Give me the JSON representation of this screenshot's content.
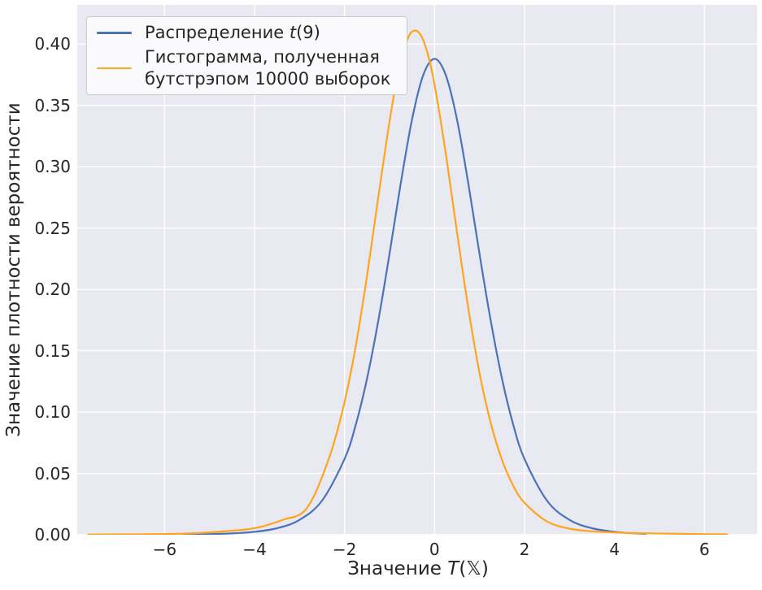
{
  "figure": {
    "background": "#ffffff",
    "plot_background": "#e9e9f1",
    "grid_color": "#ffffff",
    "text_color": "#262626"
  },
  "axes": {
    "xlabel_parts": [
      "Значение ",
      "T",
      "(𝕏)"
    ],
    "ylabel": "Значение плотности вероятности",
    "x_ticks": {
      "values": [
        -6,
        -4,
        -2,
        0,
        2,
        4,
        6
      ],
      "labels": [
        "−6",
        "−4",
        "−2",
        "0",
        "2",
        "4",
        "6"
      ]
    },
    "y_ticks": {
      "values": [
        0.0,
        0.05,
        0.1,
        0.15,
        0.2,
        0.25,
        0.3,
        0.35,
        0.4
      ],
      "labels": [
        "0.00",
        "0.05",
        "0.10",
        "0.15",
        "0.20",
        "0.25",
        "0.30",
        "0.35",
        "0.40"
      ]
    },
    "xlim": [
      -7.94,
      7.17
    ],
    "ylim": [
      0,
      0.432
    ]
  },
  "legend": {
    "entry1_parts": [
      "Распределение ",
      "t",
      "(9)"
    ],
    "entry2_lines": [
      "Гистограмма, полученная",
      "бутстрэпом 10000 выборок"
    ],
    "colors": [
      "#4c72b8",
      "#ffa41f"
    ]
  },
  "chart_data": {
    "type": "line",
    "title": "",
    "xlabel": "Значение T(𝕏)",
    "ylabel": "Значение плотности вероятности",
    "xlim": [
      -7.94,
      7.17
    ],
    "ylim": [
      0,
      0.432
    ],
    "grid": true,
    "legend_position": "upper left",
    "series": [
      {
        "id": "t9-distribution-curve",
        "name": "Распределение t(9)",
        "color": "#4c72b8",
        "points": [
          [
            -5.6,
            0.0002
          ],
          [
            -5.2,
            0.0004
          ],
          [
            -4.8,
            0.0007
          ],
          [
            -4.4,
            0.0013
          ],
          [
            -4,
            0.0024
          ],
          [
            -3.5,
            0.0053
          ],
          [
            -3,
            0.0121
          ],
          [
            -2.5,
            0.0278
          ],
          [
            -2,
            0.0617
          ],
          [
            -1.75,
            0.0897
          ],
          [
            -1.5,
            0.1272
          ],
          [
            -1.25,
            0.1743
          ],
          [
            -1,
            0.2291
          ],
          [
            -0.75,
            0.2866
          ],
          [
            -0.5,
            0.3384
          ],
          [
            -0.25,
            0.3748
          ],
          [
            0,
            0.388
          ],
          [
            0.25,
            0.3748
          ],
          [
            0.5,
            0.3384
          ],
          [
            0.75,
            0.2866
          ],
          [
            1,
            0.2291
          ],
          [
            1.25,
            0.1743
          ],
          [
            1.5,
            0.1272
          ],
          [
            1.75,
            0.0897
          ],
          [
            2,
            0.0617
          ],
          [
            2.5,
            0.0278
          ],
          [
            3,
            0.0121
          ],
          [
            3.5,
            0.0053
          ],
          [
            4,
            0.0024
          ],
          [
            4.4,
            0.0012
          ],
          [
            4.7,
            0.0008
          ]
        ]
      },
      {
        "id": "bootstrap-kde-curve",
        "name": "Гистограмма, полученная бутстрэпом 10000 выборок",
        "color": "#ffa41f",
        "points": [
          [
            -7.7,
            0.0002
          ],
          [
            -7,
            0.0003
          ],
          [
            -6.5,
            0.0004
          ],
          [
            -6,
            0.0006
          ],
          [
            -5.5,
            0.001
          ],
          [
            -5,
            0.0019
          ],
          [
            -4.5,
            0.0033
          ],
          [
            -4.1,
            0.0048
          ],
          [
            -3.8,
            0.007
          ],
          [
            -3.5,
            0.0105
          ],
          [
            -3.3,
            0.013
          ],
          [
            -3.1,
            0.0148
          ],
          [
            -2.9,
            0.019
          ],
          [
            -2.7,
            0.03
          ],
          [
            -2.5,
            0.047
          ],
          [
            -2.25,
            0.073
          ],
          [
            -2,
            0.108
          ],
          [
            -1.75,
            0.154
          ],
          [
            -1.5,
            0.211
          ],
          [
            -1.25,
            0.275
          ],
          [
            -1,
            0.337
          ],
          [
            -0.8,
            0.378
          ],
          [
            -0.6,
            0.404
          ],
          [
            -0.45,
            0.411
          ],
          [
            -0.3,
            0.407
          ],
          [
            -0.15,
            0.392
          ],
          [
            0,
            0.367
          ],
          [
            0.25,
            0.311
          ],
          [
            0.5,
            0.2465
          ],
          [
            0.75,
            0.185
          ],
          [
            1,
            0.132
          ],
          [
            1.25,
            0.091
          ],
          [
            1.5,
            0.061
          ],
          [
            1.75,
            0.04
          ],
          [
            2,
            0.026
          ],
          [
            2.5,
            0.0108
          ],
          [
            3,
            0.005
          ],
          [
            3.5,
            0.0028
          ],
          [
            4,
            0.0019
          ],
          [
            4.5,
            0.0013
          ],
          [
            5,
            0.001
          ],
          [
            5.5,
            0.0007
          ],
          [
            6,
            0.0005
          ],
          [
            6.5,
            0.0004
          ]
        ]
      }
    ]
  }
}
